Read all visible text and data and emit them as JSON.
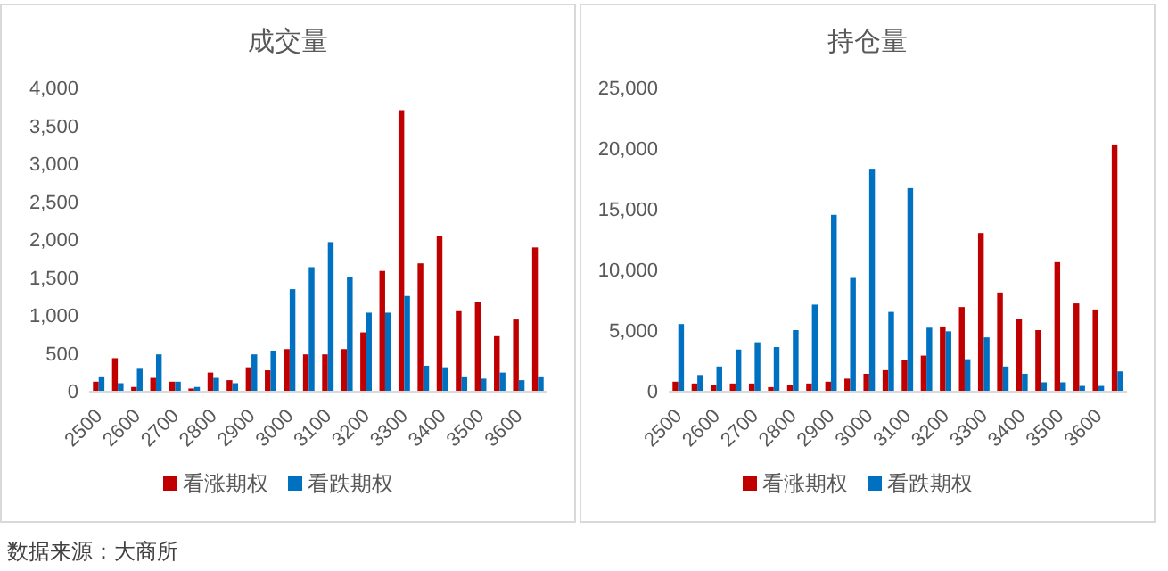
{
  "chart_data": [
    {
      "type": "bar",
      "title": "成交量",
      "categories": [
        "2500",
        null,
        "2600",
        null,
        "2700",
        null,
        "2800",
        null,
        "2900",
        null,
        "3000",
        null,
        "3100",
        null,
        "3200",
        null,
        "3300",
        null,
        "3400",
        null,
        "3500",
        null,
        "3600",
        null
      ],
      "series": [
        {
          "name": "看涨期权",
          "color": "#c00000",
          "values": [
            120,
            430,
            50,
            170,
            120,
            30,
            240,
            140,
            310,
            270,
            550,
            480,
            480,
            550,
            770,
            1580,
            3700,
            1680,
            2040,
            1050,
            1170,
            720,
            940,
            1890
          ]
        },
        {
          "name": "看跌期权",
          "color": "#0070c0",
          "values": [
            190,
            100,
            290,
            480,
            120,
            50,
            170,
            100,
            480,
            530,
            1340,
            1630,
            1960,
            1500,
            1030,
            1030,
            1250,
            330,
            310,
            190,
            160,
            240,
            140,
            190
          ]
        }
      ],
      "ylim": [
        0,
        4000
      ],
      "yticks": [
        {
          "value": 0,
          "label": "0"
        },
        {
          "value": 500,
          "label": "500"
        },
        {
          "value": 1000,
          "label": "1,000"
        },
        {
          "value": 1500,
          "label": "1,500"
        },
        {
          "value": 2000,
          "label": "2,000"
        },
        {
          "value": 2500,
          "label": "2,500"
        },
        {
          "value": 3000,
          "label": "3,000"
        },
        {
          "value": 3500,
          "label": "3,500"
        },
        {
          "value": 4000,
          "label": "4,000"
        }
      ],
      "grid": false,
      "legend": "bottom"
    },
    {
      "type": "bar",
      "title": "持仓量",
      "categories": [
        "2500",
        null,
        "2600",
        null,
        "2700",
        null,
        "2800",
        null,
        "2900",
        null,
        "3000",
        null,
        "3100",
        null,
        "3200",
        null,
        "3300",
        null,
        "3400",
        null,
        "3500",
        null,
        "3600",
        null
      ],
      "series": [
        {
          "name": "看涨期权",
          "color": "#c00000",
          "values": [
            750,
            600,
            450,
            600,
            600,
            300,
            450,
            600,
            750,
            1000,
            1400,
            1700,
            2500,
            2900,
            5300,
            6900,
            13000,
            8100,
            5900,
            5000,
            10600,
            7200,
            6700,
            20300
          ]
        },
        {
          "name": "看跌期权",
          "color": "#0070c0",
          "values": [
            5500,
            1300,
            2000,
            3400,
            4000,
            3600,
            5000,
            7100,
            14500,
            9300,
            18300,
            6500,
            16700,
            5200,
            4900,
            2600,
            4400,
            2000,
            1400,
            700,
            700,
            400,
            400,
            1600
          ]
        }
      ],
      "ylim": [
        0,
        25000
      ],
      "yticks": [
        {
          "value": 0,
          "label": "0"
        },
        {
          "value": 5000,
          "label": "5,000"
        },
        {
          "value": 10000,
          "label": "10,000"
        },
        {
          "value": 15000,
          "label": "15,000"
        },
        {
          "value": 20000,
          "label": "20,000"
        },
        {
          "value": 25000,
          "label": "25,000"
        }
      ],
      "grid": false,
      "legend": "bottom",
      "annotations": [
        "数据来源：大商所"
      ]
    }
  ]
}
